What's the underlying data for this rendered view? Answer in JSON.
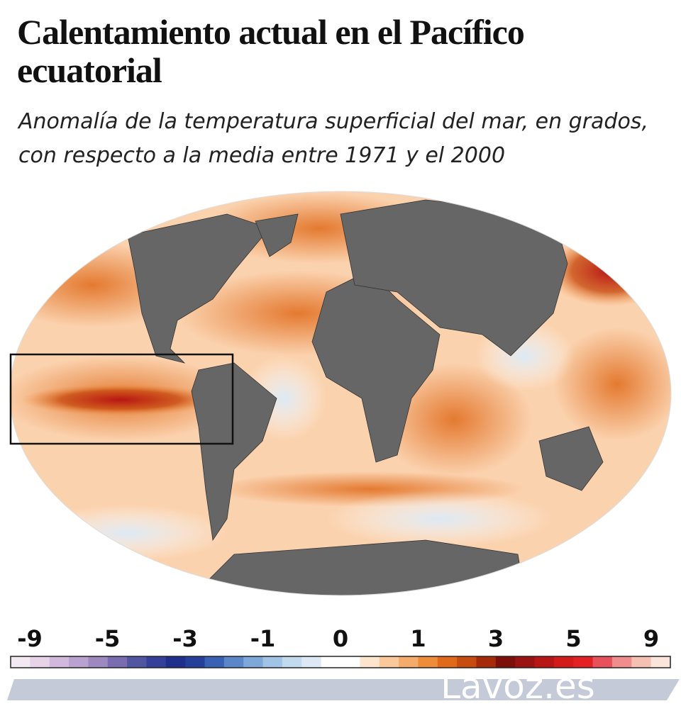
{
  "header": {
    "title": "Calentamiento actual en el Pacífico ecuatorial",
    "subtitle": "Anomalía de la temperatura superficial del mar, en grados, con respecto a la media entre 1971 y el 2000"
  },
  "legend": {
    "ticks": [
      -9,
      -5,
      -3,
      -1,
      0,
      1,
      3,
      5,
      9
    ],
    "colors": [
      "#f3e9f3",
      "#e6d3e8",
      "#d2b8dc",
      "#b9a2d0",
      "#9d88c0",
      "#7a6cb0",
      "#5056a0",
      "#35409a",
      "#1e2f8c",
      "#263f9a",
      "#3a62b4",
      "#5b86c8",
      "#7fa8da",
      "#a1c4e6",
      "#c2daee",
      "#dce9f5",
      "#ffffff",
      "#ffffff",
      "#fde4cc",
      "#f9c99c",
      "#f5ab6a",
      "#ef8c3a",
      "#e06a1a",
      "#c84b10",
      "#a52a0a",
      "#7d0f0a",
      "#9a1212",
      "#b81515",
      "#d51a1a",
      "#e42025",
      "#e8505a",
      "#ef8c8c",
      "#f5c0b4",
      "#fbe4da"
    ]
  },
  "footer": {
    "brand": "Lavoz.es"
  }
}
